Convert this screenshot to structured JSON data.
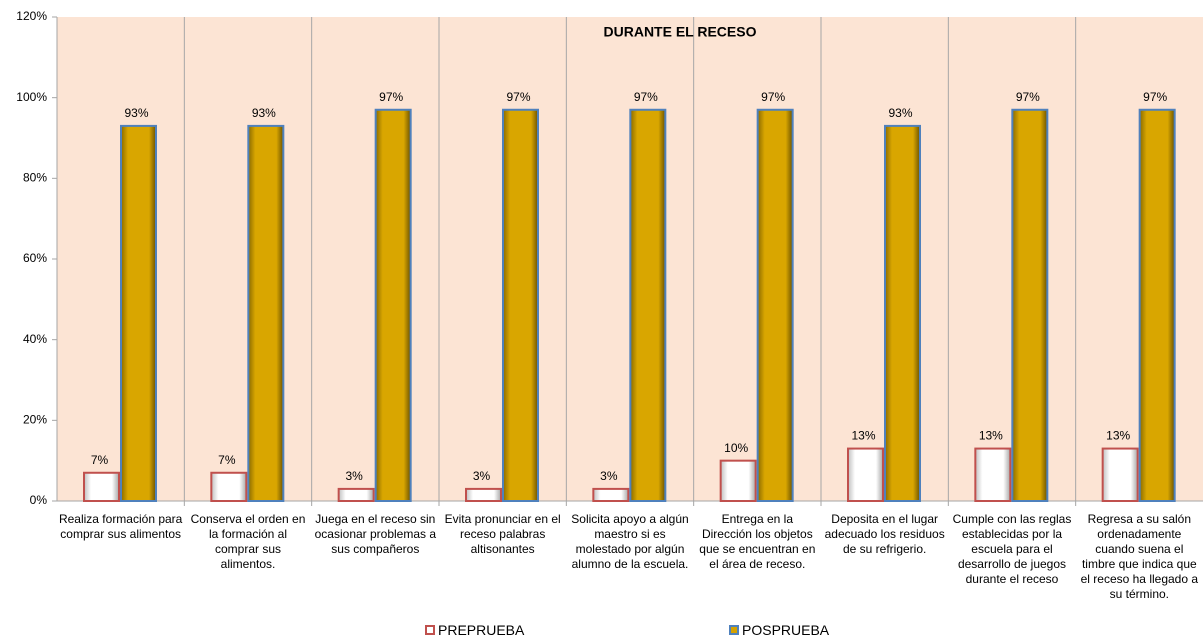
{
  "chart_data": {
    "type": "bar",
    "title": "DURANTE EL RECESO",
    "categories": [
      "Realiza formación para comprar sus alimentos",
      "Conserva el orden en la formación al comprar sus alimentos.",
      "Juega en el receso sin ocasionar problemas a sus compañeros",
      "Evita pronunciar en el receso palabras altisonantes",
      "Solicita apoyo a algún maestro si es molestado por algún alumno de la escuela.",
      "Entrega en la Dirección los objetos que se encuentran en el área de receso.",
      "Deposita en el lugar adecuado los residuos de su refrigerio.",
      "Cumple con las reglas establecidas por la escuela para el desarrollo de juegos durante el receso",
      "Regresa a su salón ordenadamente cuando suena el timbre que indica que el receso ha llegado a su término."
    ],
    "series": [
      {
        "name": "PREPRUEBA",
        "color": "#ffffff",
        "edge": "#c0504d",
        "values": [
          7,
          7,
          3,
          3,
          3,
          10,
          13,
          13,
          13
        ],
        "value_labels": [
          "7%",
          "7%",
          "3%",
          "3%",
          "3%",
          "10%",
          "13%",
          "13%",
          "13%"
        ]
      },
      {
        "name": "POSPRUEBA",
        "color": "#d4a200",
        "edge": "#4f81bd",
        "values": [
          93,
          93,
          97,
          97,
          97,
          97,
          93,
          97,
          97
        ],
        "value_labels": [
          "93%",
          "93%",
          "97%",
          "97%",
          "97%",
          "97%",
          "93%",
          "97%",
          "97%"
        ]
      }
    ],
    "ylim": [
      0,
      120
    ],
    "yticks": [
      {
        "value": 0,
        "label": "0%"
      },
      {
        "value": 20,
        "label": "20%"
      },
      {
        "value": 40,
        "label": "40%"
      },
      {
        "value": 60,
        "label": "60%"
      },
      {
        "value": 80,
        "label": "80%"
      },
      {
        "value": 100,
        "label": "100%"
      },
      {
        "value": 120,
        "label": "120%"
      }
    ],
    "plot_background": "#fce4d4",
    "grid": false
  }
}
